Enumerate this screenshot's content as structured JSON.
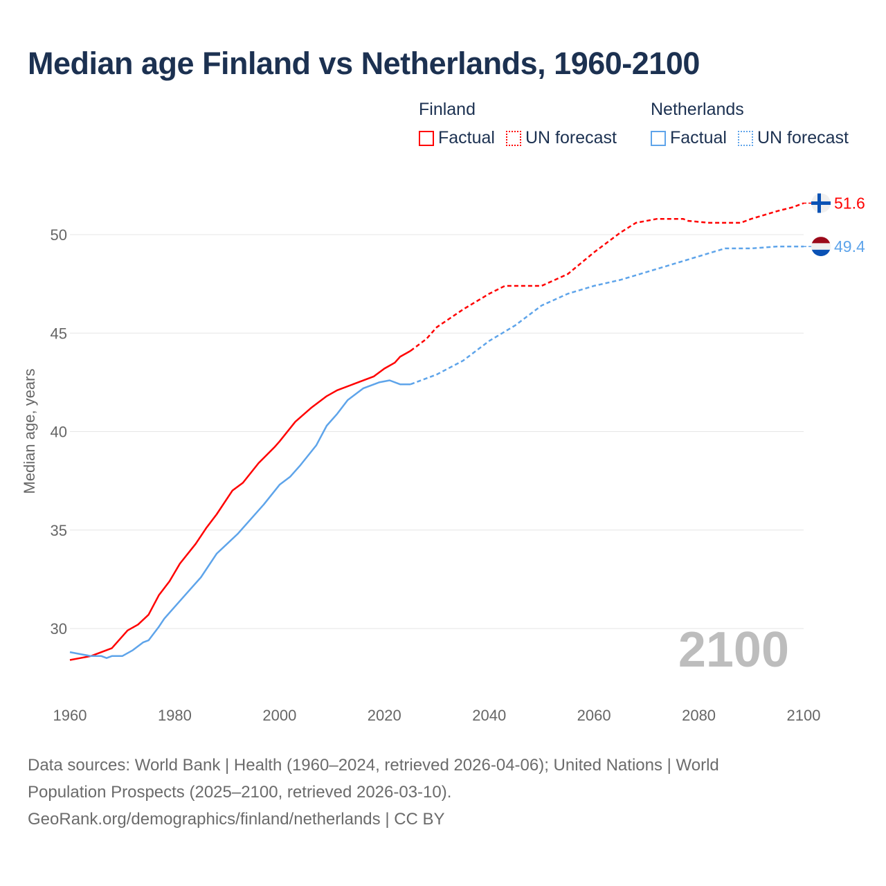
{
  "title": "Median age Finland vs Netherlands, 1960-2100",
  "legend": {
    "groups": [
      {
        "name": "Finland",
        "factual": "Factual",
        "forecast": "UN forecast",
        "color": "#ff0000"
      },
      {
        "name": "Netherlands",
        "factual": "Factual",
        "forecast": "UN forecast",
        "color": "#5ea4ea"
      }
    ]
  },
  "footer": {
    "line1": "Data sources: World Bank | Health (1960–2024, retrieved 2026-04-06); United Nations | World",
    "line2": "Population Prospects (2025–2100, retrieved 2026-03-10).",
    "line3": "GeoRank.org/demographics/finland/netherlands | CC BY"
  },
  "chart_data": {
    "type": "line",
    "title": "Median age Finland vs Netherlands, 1960-2100",
    "xlabel": "",
    "ylabel": "Median age, years",
    "xlim": [
      1960,
      2100
    ],
    "ylim": [
      27.5,
      52.2
    ],
    "x_ticks": [
      "1960",
      "1980",
      "2000",
      "2020",
      "2040",
      "2060",
      "2080",
      "2100"
    ],
    "y_ticks": [
      "30",
      "35",
      "40",
      "45",
      "50"
    ],
    "grid": true,
    "year_watermark": "2100",
    "series": [
      {
        "name": "Finland",
        "color": "#ff0000",
        "end_label": "51.6",
        "flag": "finland-flag",
        "factual": [
          [
            1960,
            28.4
          ],
          [
            1962,
            28.5
          ],
          [
            1964,
            28.6
          ],
          [
            1968,
            29.0
          ],
          [
            1971,
            29.9
          ],
          [
            1973,
            30.2
          ],
          [
            1975,
            30.7
          ],
          [
            1977,
            31.7
          ],
          [
            1979,
            32.4
          ],
          [
            1981,
            33.3
          ],
          [
            1984,
            34.3
          ],
          [
            1986,
            35.1
          ],
          [
            1988,
            35.8
          ],
          [
            1991,
            37.0
          ],
          [
            1993,
            37.4
          ],
          [
            1996,
            38.4
          ],
          [
            1999,
            39.2
          ],
          [
            2000,
            39.5
          ],
          [
            2003,
            40.5
          ],
          [
            2006,
            41.2
          ],
          [
            2009,
            41.8
          ],
          [
            2011,
            42.1
          ],
          [
            2014,
            42.4
          ],
          [
            2018,
            42.8
          ],
          [
            2020,
            43.2
          ],
          [
            2022,
            43.5
          ],
          [
            2023,
            43.8
          ],
          [
            2025,
            44.1
          ]
        ],
        "forecast": [
          [
            2025,
            44.1
          ],
          [
            2028,
            44.7
          ],
          [
            2030,
            45.3
          ],
          [
            2035,
            46.2
          ],
          [
            2040,
            47.0
          ],
          [
            2043,
            47.4
          ],
          [
            2050,
            47.4
          ],
          [
            2055,
            48.0
          ],
          [
            2060,
            49.1
          ],
          [
            2065,
            50.1
          ],
          [
            2068,
            50.6
          ],
          [
            2070,
            50.7
          ],
          [
            2072,
            50.8
          ],
          [
            2077,
            50.8
          ],
          [
            2078,
            50.7
          ],
          [
            2082,
            50.6
          ],
          [
            2088,
            50.6
          ],
          [
            2090,
            50.8
          ],
          [
            2095,
            51.2
          ],
          [
            2098,
            51.4
          ],
          [
            2100,
            51.6
          ]
        ]
      },
      {
        "name": "Netherlands",
        "color": "#5ea4ea",
        "end_label": "49.4",
        "flag": "netherlands-flag",
        "factual": [
          [
            1960,
            28.8
          ],
          [
            1962,
            28.7
          ],
          [
            1964,
            28.6
          ],
          [
            1966,
            28.6
          ],
          [
            1967,
            28.5
          ],
          [
            1968,
            28.6
          ],
          [
            1970,
            28.6
          ],
          [
            1972,
            28.9
          ],
          [
            1974,
            29.3
          ],
          [
            1975,
            29.4
          ],
          [
            1977,
            30.1
          ],
          [
            1978,
            30.5
          ],
          [
            1980,
            31.1
          ],
          [
            1983,
            32.0
          ],
          [
            1985,
            32.6
          ],
          [
            1988,
            33.8
          ],
          [
            1990,
            34.3
          ],
          [
            1992,
            34.8
          ],
          [
            1995,
            35.7
          ],
          [
            1997,
            36.3
          ],
          [
            2000,
            37.3
          ],
          [
            2002,
            37.7
          ],
          [
            2004,
            38.3
          ],
          [
            2007,
            39.3
          ],
          [
            2009,
            40.3
          ],
          [
            2011,
            40.9
          ],
          [
            2013,
            41.6
          ],
          [
            2016,
            42.2
          ],
          [
            2019,
            42.5
          ],
          [
            2021,
            42.6
          ],
          [
            2023,
            42.4
          ],
          [
            2025,
            42.4
          ]
        ],
        "forecast": [
          [
            2025,
            42.4
          ],
          [
            2030,
            42.9
          ],
          [
            2035,
            43.6
          ],
          [
            2040,
            44.6
          ],
          [
            2045,
            45.4
          ],
          [
            2050,
            46.4
          ],
          [
            2055,
            47.0
          ],
          [
            2060,
            47.4
          ],
          [
            2065,
            47.7
          ],
          [
            2070,
            48.1
          ],
          [
            2075,
            48.5
          ],
          [
            2080,
            48.9
          ],
          [
            2085,
            49.3
          ],
          [
            2090,
            49.3
          ],
          [
            2095,
            49.4
          ],
          [
            2100,
            49.4
          ]
        ]
      }
    ]
  }
}
